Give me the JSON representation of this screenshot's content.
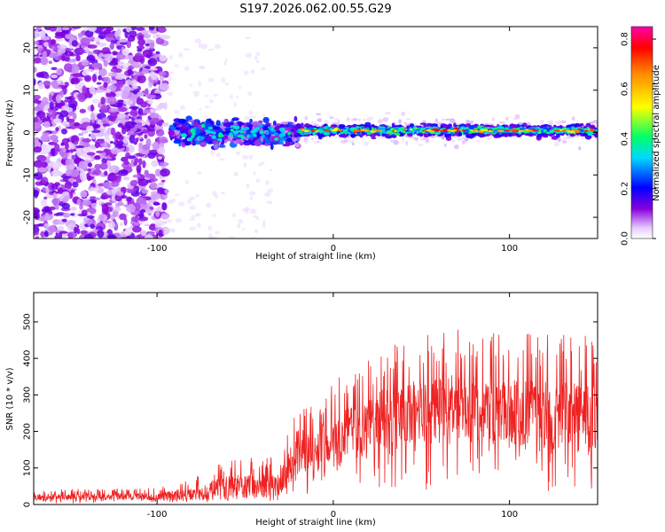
{
  "figure_title": "S197.2026.062.00.55.G29",
  "chart_data": [
    {
      "type": "heatmap",
      "title": "S197.2026.062.00.55.G29",
      "xlabel": "Height of straight line (km)",
      "ylabel": "Frequency (Hz)",
      "xlim": [
        -170,
        150
      ],
      "ylim": [
        -25,
        25
      ],
      "xticks": [
        -100,
        0,
        100
      ],
      "yticks": [
        -20,
        -10,
        0,
        10,
        20
      ],
      "colorbar": {
        "label": "Normalized spectral amplitude",
        "range": [
          0.0,
          0.85
        ],
        "ticks": [
          "0.0",
          "0.2",
          "0.4",
          "0.6",
          "0.8"
        ],
        "tick_values": [
          0.0,
          0.2,
          0.4,
          0.6,
          0.8
        ]
      },
      "regions": [
        {
          "name": "noise",
          "x_range": [
            -170,
            -95
          ],
          "freq_range": [
            -25,
            25
          ],
          "amplitude": 0.1
        },
        {
          "name": "transition",
          "x_range": [
            -95,
            -20
          ],
          "freq_range": [
            -8,
            8
          ],
          "amplitude": 0.3
        },
        {
          "name": "carrier",
          "x_range": [
            -20,
            150
          ],
          "freq_center": 0.5,
          "amplitude": 0.8
        }
      ]
    },
    {
      "type": "line",
      "xlabel": "Height of straight line (km)",
      "ylabel": "SNR (10 * v/v)",
      "xlim": [
        -170,
        150
      ],
      "ylim": [
        0,
        580
      ],
      "xticks": [
        -100,
        0,
        100
      ],
      "yticks": [
        0,
        100,
        200,
        300,
        400,
        500
      ],
      "series": [
        {
          "name": "SNR",
          "color": "#ee2222",
          "envelope": [
            {
              "x": -170,
              "base": 20,
              "peak": 40
            },
            {
              "x": -100,
              "base": 22,
              "peak": 45
            },
            {
              "x": -80,
              "base": 30,
              "peak": 70
            },
            {
              "x": -60,
              "base": 45,
              "peak": 120
            },
            {
              "x": -30,
              "base": 55,
              "peak": 130
            },
            {
              "x": -25,
              "base": 110,
              "peak": 220
            },
            {
              "x": 0,
              "base": 170,
              "peak": 330
            },
            {
              "x": 30,
              "base": 240,
              "peak": 420
            },
            {
              "x": 60,
              "base": 260,
              "peak": 470
            },
            {
              "x": 100,
              "base": 260,
              "peak": 470
            },
            {
              "x": 150,
              "base": 230,
              "peak": 450
            }
          ]
        }
      ]
    }
  ]
}
